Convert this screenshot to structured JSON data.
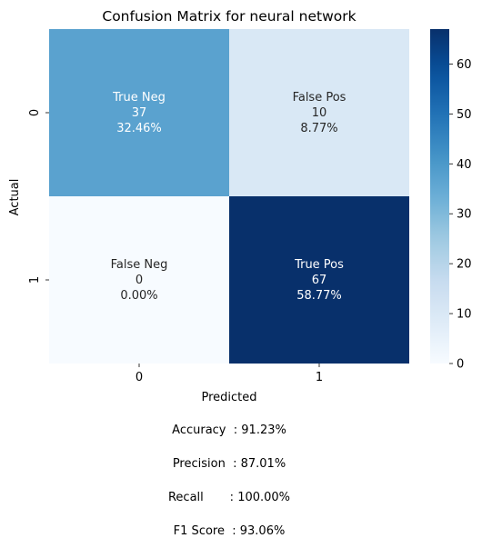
{
  "chart_data": {
    "type": "heatmap",
    "title": "Confusion Matrix for neural network",
    "xlabel": "Predicted",
    "ylabel": "Actual",
    "x_categories": [
      "0",
      "1"
    ],
    "y_categories": [
      "0",
      "1"
    ],
    "cells": [
      {
        "row": 0,
        "col": 0,
        "label": "True Neg",
        "count": "37",
        "percent": "32.46%",
        "value": 37
      },
      {
        "row": 0,
        "col": 1,
        "label": "False Pos",
        "count": "10",
        "percent": "8.77%",
        "value": 10
      },
      {
        "row": 1,
        "col": 0,
        "label": "False Neg",
        "count": "0",
        "percent": "0.00%",
        "value": 0
      },
      {
        "row": 1,
        "col": 1,
        "label": "True Pos",
        "count": "67",
        "percent": "58.77%",
        "value": 67
      }
    ],
    "colorbar": {
      "min": 0,
      "max": 67,
      "ticks": [
        "0",
        "10",
        "20",
        "30",
        "40",
        "50",
        "60"
      ],
      "tick_values": [
        0,
        10,
        20,
        30,
        40,
        50,
        60
      ],
      "colormap": "Blues"
    }
  },
  "metrics": [
    {
      "label": "Accuracy",
      "value": "Accuracy  : 91.23%"
    },
    {
      "label": "Precision",
      "value": "Precision  : 87.01%"
    },
    {
      "label": "Recall",
      "value": "Recall       : 100.00%"
    },
    {
      "label": "F1 Score",
      "value": "F1 Score  : 93.06%"
    }
  ]
}
